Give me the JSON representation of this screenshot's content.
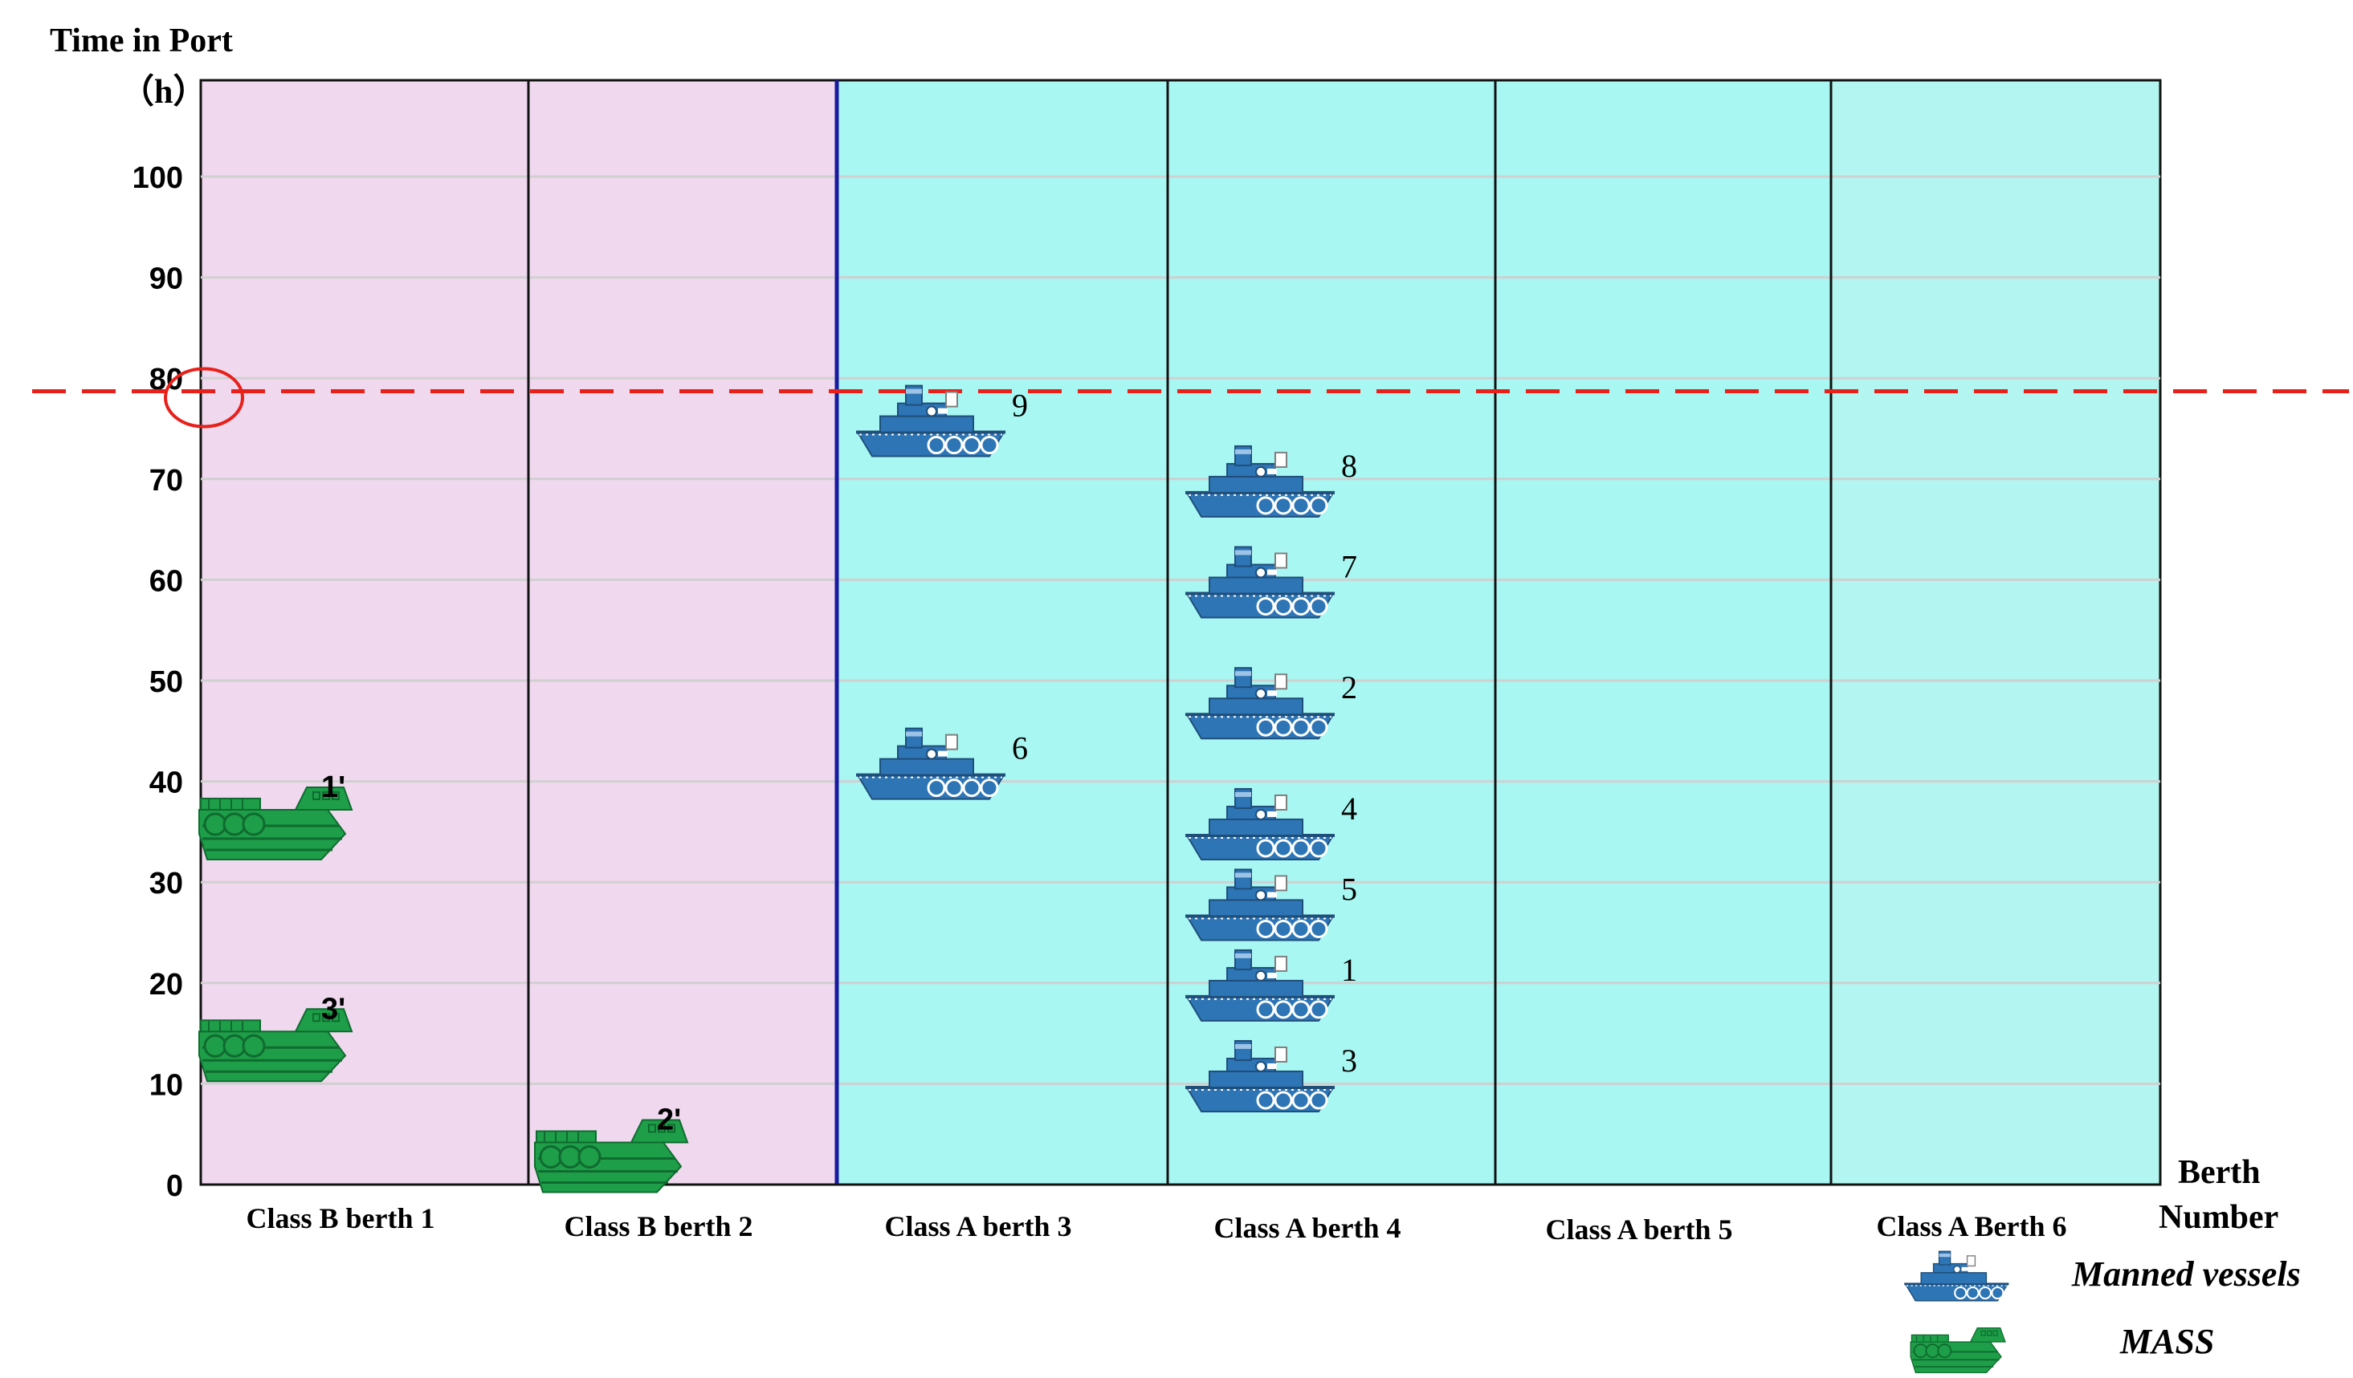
{
  "chart_data": {
    "type": "scatter",
    "title": "Time in Port",
    "ylabel_unit": "（h）",
    "xlabel": "Berth\nNumber",
    "ylim": [
      0,
      100
    ],
    "yticks": [
      0,
      10,
      20,
      30,
      40,
      50,
      60,
      70,
      80,
      90,
      100
    ],
    "threshold": {
      "value": 78.7,
      "style": "dashed",
      "color": "#e8201a"
    },
    "categories": [
      {
        "label": "Class B berth 1",
        "zone": "B"
      },
      {
        "label": "Class B  berth 2",
        "zone": "B"
      },
      {
        "label": "Class A  berth 3",
        "zone": "A"
      },
      {
        "label": "Class A berth 4",
        "zone": "A"
      },
      {
        "label": "Class A berth 5",
        "zone": "A"
      },
      {
        "label": "Class A Berth 6",
        "zone": "A"
      }
    ],
    "series": [
      {
        "name": "Manned vessels",
        "points": [
          {
            "label": "9",
            "berth": 3,
            "y": 74
          },
          {
            "label": "6",
            "berth": 3,
            "y": 40
          },
          {
            "label": "8",
            "berth": 4,
            "y": 68
          },
          {
            "label": "7",
            "berth": 4,
            "y": 58
          },
          {
            "label": "2",
            "berth": 4,
            "y": 46
          },
          {
            "label": "4",
            "berth": 4,
            "y": 34
          },
          {
            "label": "5",
            "berth": 4,
            "y": 26
          },
          {
            "label": "1",
            "berth": 4,
            "y": 18
          },
          {
            "label": "3",
            "berth": 4,
            "y": 9
          }
        ]
      },
      {
        "name": "MASS",
        "points": [
          {
            "label": "1'",
            "berth": 1,
            "y": 34
          },
          {
            "label": "3'",
            "berth": 1,
            "y": 12
          },
          {
            "label": "2'",
            "berth": 2,
            "y": 1
          }
        ]
      }
    ],
    "colors": {
      "classB_bg": "#f0d9ee",
      "classA_bg": "#a8f7f2",
      "manned": "#2e75b6",
      "mass": "#1e9e48",
      "threshold": "#e8201a",
      "marker_circle": "#e8201a"
    },
    "legend": {
      "position": "bottom-right"
    }
  }
}
